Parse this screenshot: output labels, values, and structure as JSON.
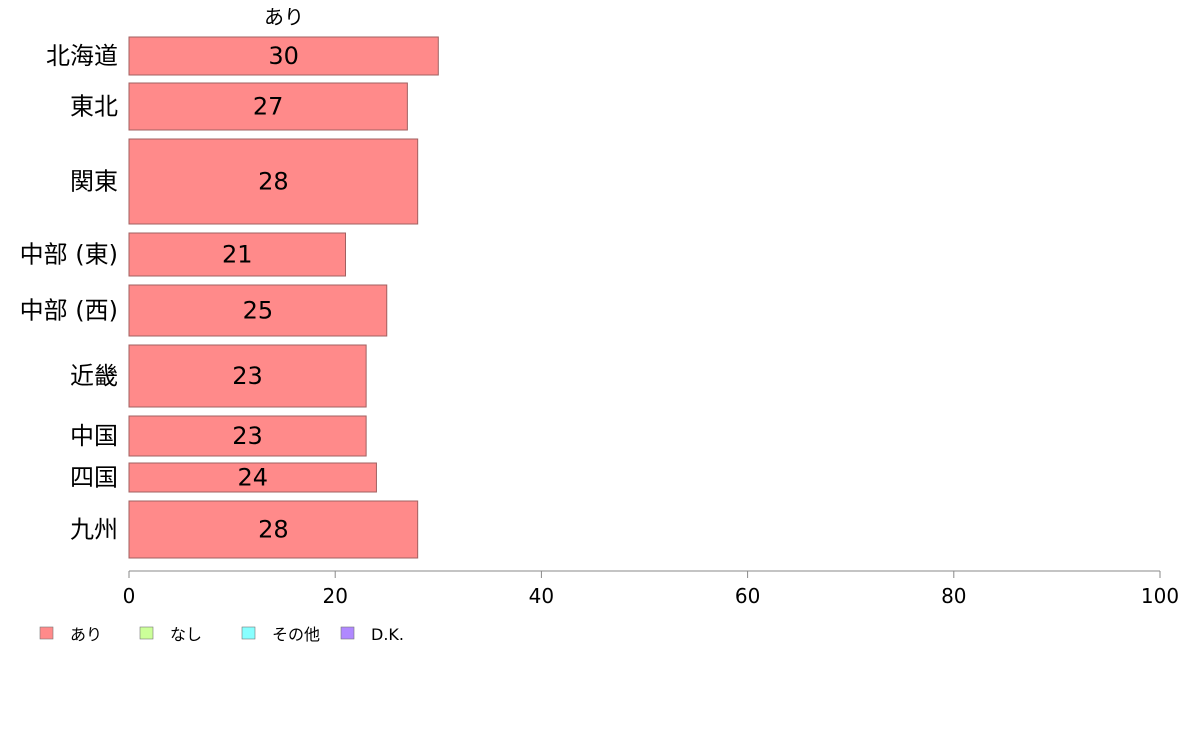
{
  "chart_data": {
    "type": "bar",
    "orientation": "horizontal",
    "title": "あり",
    "categories": [
      "北海道",
      "東北",
      "関東",
      "中部 (東)",
      "中部 (西)",
      "近畿",
      "中国",
      "四国",
      "九州"
    ],
    "series": [
      {
        "name": "あり",
        "values": [
          30,
          27,
          28,
          21,
          25,
          23,
          23,
          24,
          28
        ]
      }
    ],
    "xlim": [
      0,
      100
    ],
    "xticks": [
      0,
      20,
      40,
      60,
      80,
      100
    ],
    "grid": false,
    "legend": {
      "position": "bottom-left",
      "items": [
        {
          "label": "あり",
          "color": "#ff8a8a"
        },
        {
          "label": "なし",
          "color": "#ccff99"
        },
        {
          "label": "その他",
          "color": "#88ffff"
        },
        {
          "label": "D.K.",
          "color": "#b088ff"
        }
      ]
    },
    "colors": {
      "bar_fill": "#ff8a8a",
      "bar_stroke": "#a06060",
      "axis": "#888888"
    }
  }
}
